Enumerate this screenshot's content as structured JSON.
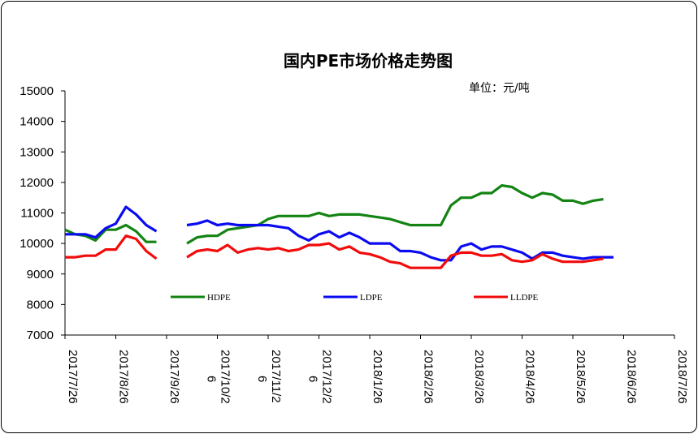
{
  "chart_data": {
    "type": "line",
    "title": "国内PE市场价格走势图",
    "unit_label": "单位：元/吨",
    "ylim": [
      7000,
      15000
    ],
    "y_ticks": [
      "15000",
      "14000",
      "13000",
      "12000",
      "11000",
      "10000",
      "9000",
      "8000",
      "7000"
    ],
    "y_tick_values": [
      15000,
      14000,
      13000,
      12000,
      11000,
      10000,
      9000,
      8000,
      7000
    ],
    "x_ticks": [
      {
        "line1": "2017/7/26",
        "line2": ""
      },
      {
        "line1": "2017/8/26",
        "line2": ""
      },
      {
        "line1": "2017/9/26",
        "line2": ""
      },
      {
        "line1": "2017/10/2",
        "line2": "6"
      },
      {
        "line1": "2017/11/2",
        "line2": "6"
      },
      {
        "line1": "2017/12/2",
        "line2": "6"
      },
      {
        "line1": "2018/1/26",
        "line2": ""
      },
      {
        "line1": "2018/2/26",
        "line2": ""
      },
      {
        "line1": "2018/3/26",
        "line2": ""
      },
      {
        "line1": "2018/4/26",
        "line2": ""
      },
      {
        "line1": "2018/5/26",
        "line2": ""
      },
      {
        "line1": "2018/6/26",
        "line2": ""
      },
      {
        "line1": "2018/7/26",
        "line2": ""
      }
    ],
    "x_tick_index": [
      0,
      5,
      10,
      15,
      20,
      25,
      30,
      35,
      40,
      45,
      50,
      55,
      60
    ],
    "x_count": 61,
    "grid": false,
    "legend_position": "inside-bottom",
    "series": [
      {
        "name": "HDPE",
        "color": "#138413",
        "values": [
          10450,
          10300,
          10250,
          10100,
          10450,
          10450,
          10600,
          10400,
          10050,
          10050,
          null,
          null,
          10000,
          10200,
          10250,
          10250,
          10450,
          10500,
          10550,
          10600,
          10800,
          10900,
          10900,
          10900,
          10900,
          11000,
          10900,
          10950,
          10950,
          10950,
          10900,
          10850,
          10800,
          10700,
          10600,
          10600,
          10600,
          10600,
          11250,
          11500,
          11500,
          11650,
          11650,
          11900,
          11850,
          11650,
          11500,
          11650,
          11600,
          11400,
          11400,
          11300,
          11400,
          11450,
          null,
          null,
          null,
          null,
          null,
          null,
          null
        ]
      },
      {
        "name": "LDPE",
        "color": "#0b0bf2",
        "values": [
          10300,
          10300,
          10300,
          10200,
          10500,
          10650,
          11200,
          10950,
          10600,
          10400,
          null,
          null,
          10600,
          10650,
          10750,
          10600,
          10650,
          10600,
          10600,
          10600,
          10600,
          10550,
          10500,
          10250,
          10100,
          10300,
          10400,
          10200,
          10350,
          10200,
          10000,
          10000,
          10000,
          9750,
          9750,
          9700,
          9550,
          9450,
          9450,
          9900,
          10000,
          9800,
          9900,
          9900,
          9800,
          9700,
          9500,
          9700,
          9700,
          9600,
          9550,
          9500,
          9550,
          9550,
          9550,
          null,
          null,
          null,
          null,
          null,
          null
        ]
      },
      {
        "name": "LLDPE",
        "color": "#f20b0b",
        "values": [
          9550,
          9550,
          9600,
          9600,
          9800,
          9800,
          10250,
          10150,
          9750,
          9500,
          null,
          null,
          9550,
          9750,
          9800,
          9750,
          9950,
          9700,
          9800,
          9850,
          9800,
          9850,
          9750,
          9800,
          9950,
          9950,
          10000,
          9800,
          9900,
          9700,
          9650,
          9550,
          9400,
          9350,
          9200,
          9200,
          9200,
          9200,
          9600,
          9700,
          9700,
          9600,
          9600,
          9650,
          9450,
          9400,
          9450,
          9650,
          9500,
          9400,
          9400,
          9400,
          9450,
          9500,
          null,
          null,
          null,
          null,
          null,
          null,
          null
        ]
      }
    ]
  }
}
